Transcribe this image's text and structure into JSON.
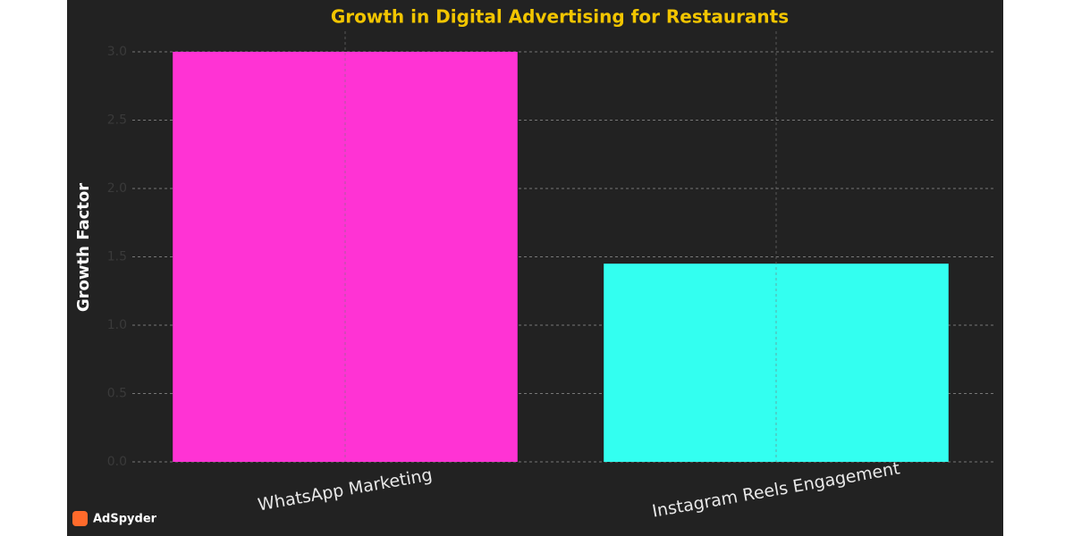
{
  "chart_data": {
    "type": "bar",
    "title": "Growth in Digital Advertising for Restaurants",
    "y_label": "Growth Factor",
    "categories": [
      "WhatsApp Marketing",
      "Instagram Reels Engagement"
    ],
    "values": [
      3.0,
      1.45
    ],
    "colors": [
      "#ff33d4",
      "#33fff0"
    ],
    "ylim": [
      0,
      3.15
    ],
    "yticks": [
      {
        "value": 0,
        "label": "0.0"
      },
      {
        "value": 0.5,
        "label": "0.5"
      },
      {
        "value": 1,
        "label": "1.0"
      },
      {
        "value": 1.5,
        "label": "1.5"
      },
      {
        "value": 2,
        "label": "2.0"
      },
      {
        "value": 2.5,
        "label": "2.5"
      },
      {
        "value": 3,
        "label": "3.0"
      }
    ],
    "grid": true
  },
  "watermark": "AdSpyder"
}
